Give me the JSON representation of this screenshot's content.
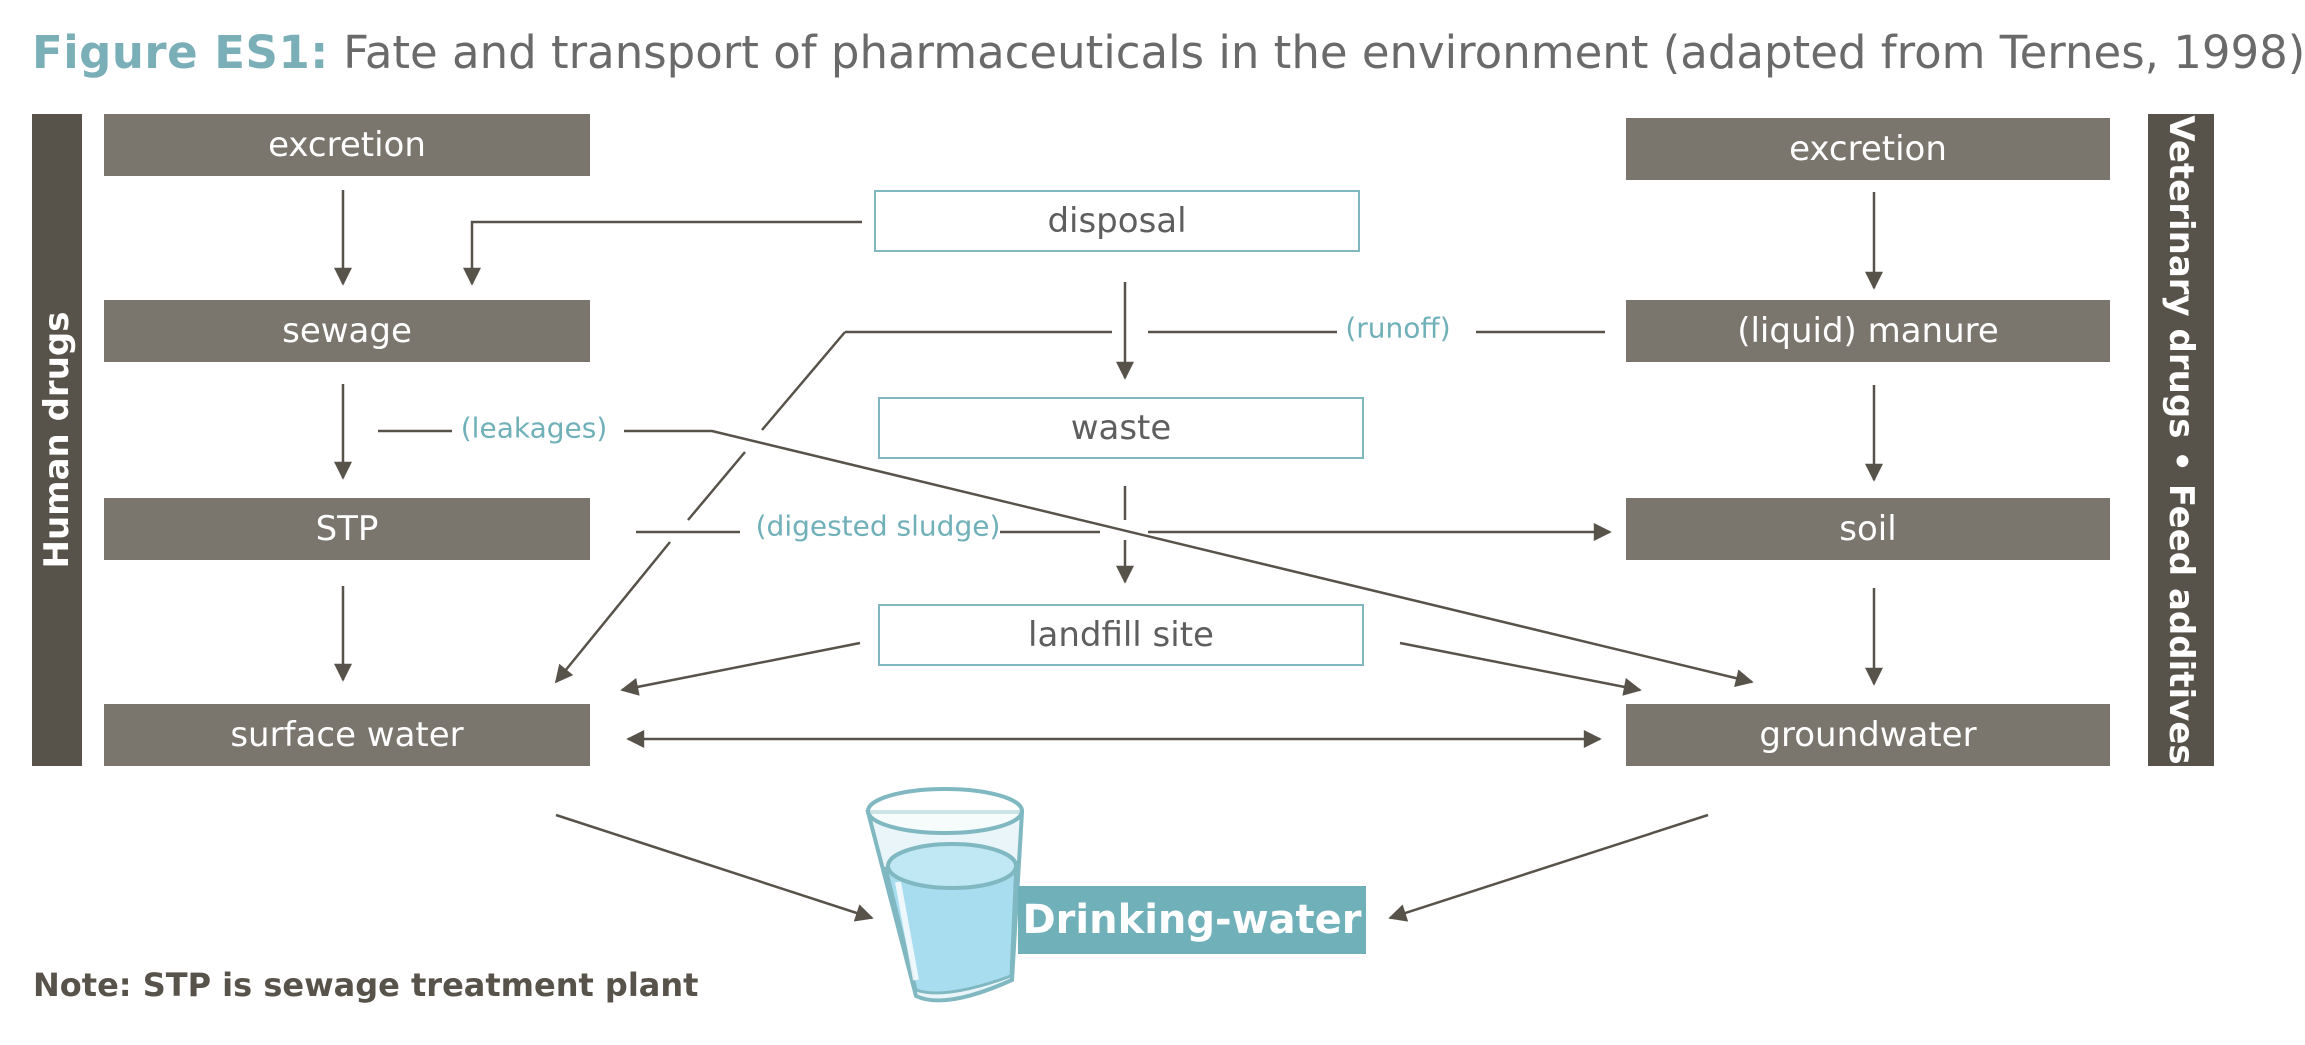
{
  "title": {
    "figure_label": "Figure ES1:",
    "caption": "Fate and transport of pharmaceuticals in the environment (adapted from Ternes, 1998)"
  },
  "side_labels": {
    "left": "Human drugs",
    "right": "Veterinary drugs • Feed additives"
  },
  "human_column": {
    "excretion": "excretion",
    "sewage": "sewage",
    "stp": "STP",
    "surface_water": "surface water"
  },
  "center_column": {
    "disposal": "disposal",
    "waste": "waste",
    "landfill": "landfill site"
  },
  "veterinary_column": {
    "excretion": "excretion",
    "manure": "(liquid) manure",
    "soil": "soil",
    "groundwater": "groundwater"
  },
  "flow_labels": {
    "runoff": "(runoff)",
    "leakages": "(leakages)",
    "digested_sludge": "(digested sludge)"
  },
  "drinking_water": "Drinking-water",
  "note": "Note: STP is sewage treatment plant",
  "colors": {
    "dark_box": "#7a766e",
    "sidebar": "#58534a",
    "accent_teal": "#6fb0b9",
    "title_teal": "#7aafb8",
    "arrow": "#58534a",
    "water": "#a8dcef"
  },
  "icons": {
    "glass": "drinking-glass-icon"
  }
}
